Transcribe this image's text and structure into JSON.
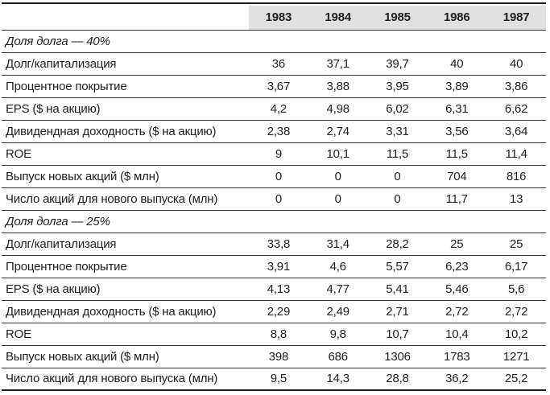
{
  "colors": {
    "header_bg": "#e0e0e0",
    "text": "#1f1f1f",
    "row_line": "#333333",
    "frame_line": "#1d1d1d"
  },
  "table": {
    "columns": [
      "1983",
      "1984",
      "1985",
      "1986",
      "1987"
    ],
    "sections": [
      {
        "title": "Доля долга — 40%",
        "rows": [
          {
            "label": "Долг/капитализация",
            "values": [
              "36",
              "37,1",
              "39,7",
              "40",
              "40"
            ]
          },
          {
            "label": "Процентное покрытие",
            "values": [
              "3,67",
              "3,88",
              "3,95",
              "3,89",
              "3,86"
            ]
          },
          {
            "label": "EPS ($ на акцию)",
            "values": [
              "4,2",
              "4,98",
              "6,02",
              "6,31",
              "6,62"
            ]
          },
          {
            "label": "Дивидендная доходность ($ на акцию)",
            "values": [
              "2,38",
              "2,74",
              "3,31",
              "3,56",
              "3,64"
            ]
          },
          {
            "label": "ROE",
            "values": [
              "9",
              "10,1",
              "11,5",
              "11,5",
              "11,4"
            ]
          },
          {
            "label": "Выпуск новых акций ($ млн)",
            "values": [
              "0",
              "0",
              "0",
              "704",
              "816"
            ]
          },
          {
            "label": "Число акций для нового выпуска (млн)",
            "values": [
              "0",
              "0",
              "0",
              "11,7",
              "13"
            ]
          }
        ]
      },
      {
        "title": "Доля долга — 25%",
        "rows": [
          {
            "label": "Долг/капитализация",
            "values": [
              "33,8",
              "31,4",
              "28,2",
              "25",
              "25"
            ]
          },
          {
            "label": "Процентное покрытие",
            "values": [
              "3,91",
              "4,6",
              "5,57",
              "6,23",
              "6,17"
            ]
          },
          {
            "label": "EPS ($ на акцию)",
            "values": [
              "4,13",
              "4,77",
              "5,41",
              "5,46",
              "5,6"
            ]
          },
          {
            "label": "Дивидендная доходность ($ на акцию)",
            "values": [
              "2,29",
              "2,49",
              "2,71",
              "2,72",
              "2,72"
            ]
          },
          {
            "label": "ROE",
            "values": [
              "8,8",
              "9,8",
              "10,7",
              "10,4",
              "10,2"
            ]
          },
          {
            "label": "Выпуск новых акций ($ млн)",
            "values": [
              "398",
              "686",
              "1306",
              "1783",
              "1271"
            ]
          },
          {
            "label": "Число акций для нового выпуска (млн)",
            "values": [
              "9,5",
              "14,3",
              "28,8",
              "36,2",
              "25,2"
            ]
          }
        ]
      }
    ]
  }
}
